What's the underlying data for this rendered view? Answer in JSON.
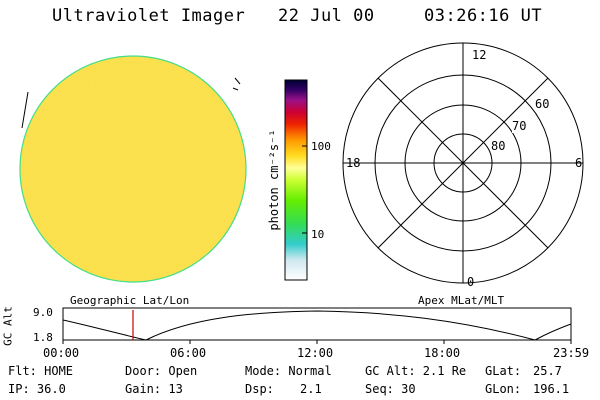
{
  "header": {
    "title": "Ultraviolet Imager",
    "date": "22 Jul 00",
    "time": "03:26:16 UT"
  },
  "colorbar": {
    "label": "photon cm⁻²s⁻¹",
    "ticks": [
      "100",
      "10"
    ]
  },
  "polar_plot": {
    "mlt_labels": {
      "top": "12",
      "left": "18",
      "right": "6",
      "bottom": "0"
    },
    "lat_labels": [
      "60",
      "70",
      "80"
    ]
  },
  "altitude_panel": {
    "left_label": "Geographic Lat/Lon",
    "right_label": "Apex MLat/MLT",
    "ylabel": "GC Alt",
    "yticks": [
      "9.0",
      "1.8"
    ],
    "xticks": [
      "00:00",
      "06:00",
      "12:00",
      "18:00",
      "23:59"
    ]
  },
  "status": {
    "flt": "Flt: HOME",
    "ip": "IP: 36.0",
    "door": "Door: Open",
    "gain": "Gain: 13",
    "mode": "Mode: Normal",
    "dsp_label": "Dsp:",
    "dsp_value": "2.1",
    "gc_alt": "GC Alt: 2.1 Re",
    "seq": "Seq: 30",
    "glat_label": "GLat:",
    "glat_value": "25.7",
    "glon_label": "GLon:",
    "glon_value": "196.1"
  },
  "colors": {
    "earth_base": "#f6c22a",
    "earth_limb": "#44dd88",
    "marker": "#cc0000"
  }
}
